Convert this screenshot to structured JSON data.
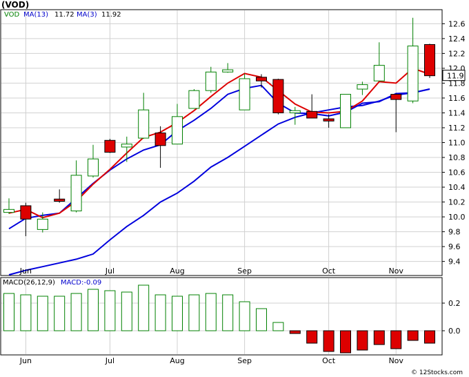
{
  "title": "(VOD)",
  "watermark": "© 12Stocks.com",
  "colors": {
    "up": "#008000",
    "down": "#dd0000",
    "ma13": "#0000dd",
    "ma3": "#dd0000",
    "grid": "#d0d0d0"
  },
  "price_legend": {
    "symbol": "VOD",
    "ma13_label": "MA(13)",
    "ma13_value": "11.72",
    "ma3_label": "MA(3)",
    "ma3_value": "11.92"
  },
  "current_price_label": "11.9",
  "macd_legend": {
    "label": "MACD(26,12,9)",
    "value_label": "MACD:-0.09"
  },
  "chart_data": [
    {
      "type": "candlestick",
      "x_labels": [
        "Jun",
        "Jul",
        "Aug",
        "Sep",
        "Oct",
        "Nov"
      ],
      "ylim": [
        9.22,
        12.78
      ],
      "yticks": [
        "9.4",
        "9.6",
        "9.8",
        "10.0",
        "10.2",
        "10.4",
        "10.6",
        "10.8",
        "11.0",
        "11.2",
        "11.4",
        "11.6",
        "11.8",
        "12.0",
        "12.2",
        "12.4",
        "12.6"
      ],
      "candles": [
        {
          "o": 10.06,
          "h": 10.25,
          "l": 10.04,
          "c": 10.1
        },
        {
          "o": 10.15,
          "h": 10.19,
          "l": 9.74,
          "c": 9.97
        },
        {
          "o": 9.83,
          "h": 10.06,
          "l": 9.79,
          "c": 9.97
        },
        {
          "o": 10.24,
          "h": 10.37,
          "l": 10.19,
          "c": 10.21
        },
        {
          "o": 10.08,
          "h": 10.76,
          "l": 10.06,
          "c": 10.56
        },
        {
          "o": 10.55,
          "h": 10.97,
          "l": 10.53,
          "c": 10.78
        },
        {
          "o": 11.03,
          "h": 11.05,
          "l": 10.86,
          "c": 10.87
        },
        {
          "o": 10.94,
          "h": 11.08,
          "l": 10.74,
          "c": 10.98
        },
        {
          "o": 11.06,
          "h": 11.67,
          "l": 11.05,
          "c": 11.44
        },
        {
          "o": 11.13,
          "h": 11.22,
          "l": 10.66,
          "c": 10.96
        },
        {
          "o": 10.98,
          "h": 11.52,
          "l": 10.98,
          "c": 11.35
        },
        {
          "o": 11.46,
          "h": 11.72,
          "l": 11.46,
          "c": 11.7
        },
        {
          "o": 11.7,
          "h": 12.02,
          "l": 11.67,
          "c": 11.95
        },
        {
          "o": 11.95,
          "h": 12.07,
          "l": 11.94,
          "c": 11.98
        },
        {
          "o": 11.44,
          "h": 11.93,
          "l": 11.44,
          "c": 11.86
        },
        {
          "o": 11.88,
          "h": 11.92,
          "l": 11.74,
          "c": 11.83
        },
        {
          "o": 11.85,
          "h": 11.86,
          "l": 11.38,
          "c": 11.4
        },
        {
          "o": 11.4,
          "h": 11.48,
          "l": 11.24,
          "c": 11.43
        },
        {
          "o": 11.42,
          "h": 11.65,
          "l": 11.33,
          "c": 11.33
        },
        {
          "o": 11.32,
          "h": 11.38,
          "l": 11.2,
          "c": 11.29
        },
        {
          "o": 11.2,
          "h": 11.65,
          "l": 11.2,
          "c": 11.65
        },
        {
          "o": 11.72,
          "h": 11.82,
          "l": 11.64,
          "c": 11.78
        },
        {
          "o": 11.83,
          "h": 12.35,
          "l": 11.83,
          "c": 12.04
        },
        {
          "o": 11.65,
          "h": 11.66,
          "l": 11.14,
          "c": 11.58
        },
        {
          "o": 11.56,
          "h": 12.68,
          "l": 11.53,
          "c": 12.3
        },
        {
          "o": 12.32,
          "h": 12.33,
          "l": 11.87,
          "c": 11.9
        }
      ],
      "ma13": [
        9.84,
        9.98,
        10.02,
        10.05,
        10.25,
        10.45,
        10.63,
        10.78,
        10.9,
        10.97,
        11.16,
        11.3,
        11.46,
        11.65,
        11.73,
        11.77,
        11.53,
        11.4,
        11.39,
        11.36,
        11.41,
        11.53,
        11.55,
        11.66,
        11.67,
        11.72
      ],
      "ma13_slow": [
        9.22,
        9.28,
        9.33,
        9.38,
        9.43,
        9.5,
        9.69,
        9.87,
        10.02,
        10.2,
        10.32,
        10.48,
        10.67,
        10.8,
        10.95,
        11.1,
        11.25,
        11.34,
        11.4,
        11.44,
        11.48,
        11.5,
        11.56,
        11.64,
        11.67,
        11.72
      ],
      "ma3": [
        10.05,
        10.1,
        9.99,
        10.05,
        10.21,
        10.44,
        10.64,
        10.86,
        11.07,
        11.14,
        11.27,
        11.43,
        11.62,
        11.8,
        11.93,
        11.88,
        11.7,
        11.52,
        11.41,
        11.4,
        11.42,
        11.56,
        11.82,
        11.8,
        12.0,
        11.92
      ]
    },
    {
      "type": "bar",
      "name": "MACD(26,12,9)",
      "ylim": [
        -0.17,
        0.38
      ],
      "yticks": [
        "0.0",
        "0.2"
      ],
      "values": [
        0.27,
        0.26,
        0.25,
        0.25,
        0.27,
        0.3,
        0.29,
        0.28,
        0.33,
        0.26,
        0.25,
        0.26,
        0.27,
        0.26,
        0.21,
        0.16,
        0.06,
        -0.02,
        -0.09,
        -0.15,
        -0.16,
        -0.14,
        -0.1,
        -0.13,
        -0.07,
        -0.09
      ]
    }
  ]
}
